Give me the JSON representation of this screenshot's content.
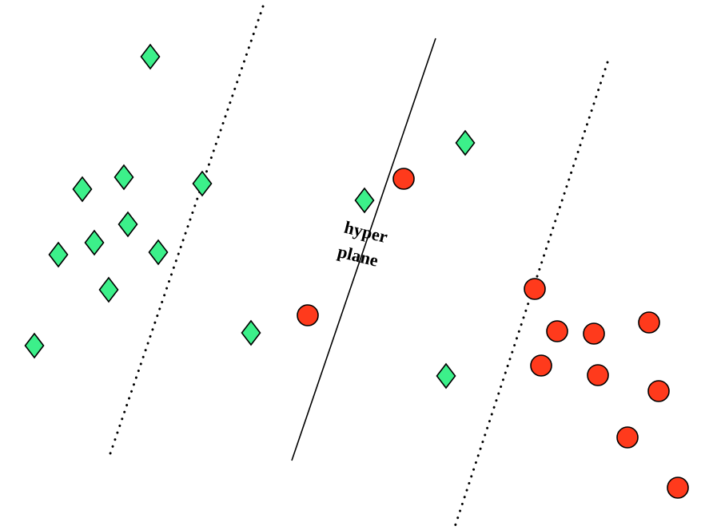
{
  "hyperplane_label": {
    "line1": "hyper",
    "line2": "plane"
  },
  "colors": {
    "diamond_fill": "#3CF08A",
    "circle_fill": "#FF3A1C",
    "stroke": "#000000",
    "background": "#FFFFFF"
  },
  "marker_shapes": {
    "class_a": "diamond",
    "class_b": "circle"
  },
  "line_styles": {
    "hyperplane": "solid",
    "margins": "dotted"
  }
}
